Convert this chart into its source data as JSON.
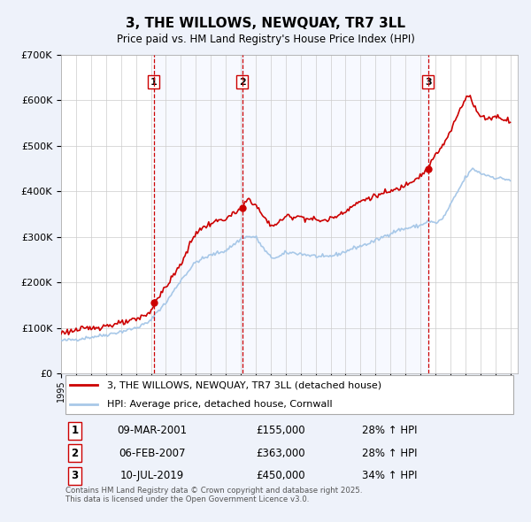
{
  "title": "3, THE WILLOWS, NEWQUAY, TR7 3LL",
  "subtitle": "Price paid vs. HM Land Registry's House Price Index (HPI)",
  "hpi_label": "HPI: Average price, detached house, Cornwall",
  "property_label": "3, THE WILLOWS, NEWQUAY, TR7 3LL (detached house)",
  "transactions": [
    {
      "num": 1,
      "date": "09-MAR-2001",
      "date_val": 2001.19,
      "price": 155000,
      "pct": "28%",
      "dir": "↑"
    },
    {
      "num": 2,
      "date": "06-FEB-2007",
      "date_val": 2007.1,
      "price": 363000,
      "pct": "28%",
      "dir": "↑"
    },
    {
      "num": 3,
      "date": "10-JUL-2019",
      "date_val": 2019.52,
      "price": 450000,
      "pct": "34%",
      "dir": "↑"
    }
  ],
  "xlim": [
    1995.0,
    2025.5
  ],
  "ylim": [
    0,
    700000
  ],
  "yticks": [
    0,
    100000,
    200000,
    300000,
    400000,
    500000,
    600000,
    700000
  ],
  "background_color": "#eef2fa",
  "plot_bg_color": "#ffffff",
  "grid_color": "#cccccc",
  "property_color": "#cc0000",
  "hpi_color": "#a8c8e8",
  "vline_color": "#cc0000",
  "footnote": "Contains HM Land Registry data © Crown copyright and database right 2025.\nThis data is licensed under the Open Government Licence v3.0."
}
